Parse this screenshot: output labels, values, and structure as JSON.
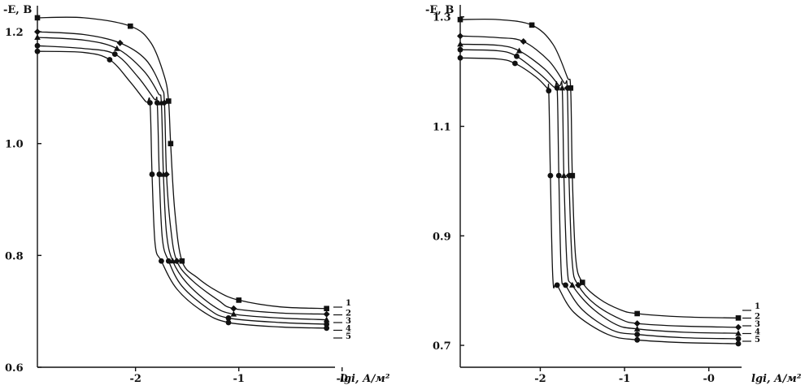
{
  "chart_data": [
    {
      "type": "line",
      "ylabel": "-E, B",
      "xlabel": "lgi, А/м²",
      "xlabel_parts": [
        "lgi, ",
        "А/м²"
      ],
      "xlim": [
        -2.95,
        -0.1
      ],
      "ylim": [
        0.6,
        1.235
      ],
      "x_ticks": [
        -2,
        -1,
        0
      ],
      "x_tick_labels": [
        "-2",
        "-1",
        "-0"
      ],
      "y_ticks": [
        0.6,
        0.8,
        1.0,
        1.2
      ],
      "y_tick_labels": [
        "0.6",
        "0.8",
        "1.0",
        "1.2"
      ],
      "grid": false,
      "legend_position": "right",
      "series": [
        {
          "name": "1",
          "marker": "square",
          "x": [
            -2.95,
            -2.5,
            -2.05,
            -1.85,
            -1.72,
            -1.68,
            -1.66,
            -1.62,
            -1.55,
            -1.4,
            -1.2,
            -1.0,
            -0.6,
            -0.15
          ],
          "y": [
            1.225,
            1.225,
            1.21,
            1.18,
            1.12,
            1.076,
            1.0,
            0.88,
            0.79,
            0.76,
            0.735,
            0.72,
            0.708,
            0.705
          ]
        },
        {
          "name": "2",
          "marker": "diamond",
          "x": [
            -2.95,
            -2.5,
            -2.15,
            -1.9,
            -1.75,
            -1.72,
            -1.7,
            -1.66,
            -1.6,
            -1.45,
            -1.2,
            -1.05,
            -0.6,
            -0.15
          ],
          "y": [
            1.2,
            1.195,
            1.18,
            1.15,
            1.1,
            1.073,
            0.945,
            0.85,
            0.79,
            0.755,
            0.72,
            0.705,
            0.697,
            0.695
          ]
        },
        {
          "name": "3",
          "marker": "triangle",
          "x": [
            -2.95,
            -2.5,
            -2.18,
            -1.92,
            -1.78,
            -1.75,
            -1.73,
            -1.7,
            -1.64,
            -1.5,
            -1.25,
            -1.05,
            -0.6,
            -0.15
          ],
          "y": [
            1.19,
            1.185,
            1.17,
            1.13,
            1.09,
            1.073,
            0.945,
            0.84,
            0.79,
            0.75,
            0.71,
            0.695,
            0.688,
            0.685
          ]
        },
        {
          "name": "4",
          "marker": "circle",
          "x": [
            -2.95,
            -2.5,
            -2.2,
            -1.98,
            -1.82,
            -1.79,
            -1.77,
            -1.74,
            -1.68,
            -1.55,
            -1.3,
            -1.1,
            -0.6,
            -0.15
          ],
          "y": [
            1.175,
            1.17,
            1.16,
            1.12,
            1.08,
            1.073,
            0.945,
            0.83,
            0.79,
            0.745,
            0.705,
            0.688,
            0.68,
            0.677
          ]
        },
        {
          "name": "5",
          "marker": "circle",
          "x": [
            -2.95,
            -2.5,
            -2.25,
            -2.05,
            -1.9,
            -1.86,
            -1.84,
            -1.81,
            -1.75,
            -1.6,
            -1.35,
            -1.1,
            -0.6,
            -0.15
          ],
          "y": [
            1.165,
            1.163,
            1.15,
            1.11,
            1.075,
            1.073,
            0.945,
            0.82,
            0.79,
            0.74,
            0.7,
            0.68,
            0.672,
            0.67
          ]
        }
      ]
    },
    {
      "type": "line",
      "ylabel": "-E, B",
      "xlabel": "lgi, А/м²",
      "xlabel_parts": [
        "lgi, ",
        "А/м²"
      ],
      "xlim": [
        -2.95,
        0.35
      ],
      "ylim": [
        0.66,
        1.31
      ],
      "x_ticks": [
        -2,
        -1,
        0
      ],
      "x_tick_labels": [
        "-2",
        "-1",
        "-0"
      ],
      "y_ticks": [
        0.7,
        0.9,
        1.1,
        1.3
      ],
      "y_tick_labels": [
        "0.7",
        "0.9",
        "1.1",
        "1.3"
      ],
      "grid": false,
      "legend_position": "right",
      "series": [
        {
          "name": "1",
          "marker": "square",
          "x": [
            -2.95,
            -2.5,
            -2.1,
            -1.85,
            -1.68,
            -1.64,
            -1.62,
            -1.58,
            -1.5,
            -1.3,
            -1.05,
            -0.85,
            -0.3,
            0.35
          ],
          "y": [
            1.295,
            1.295,
            1.285,
            1.25,
            1.19,
            1.17,
            1.01,
            0.86,
            0.815,
            0.785,
            0.765,
            0.758,
            0.752,
            0.75
          ]
        },
        {
          "name": "2",
          "marker": "diamond",
          "x": [
            -2.95,
            -2.5,
            -2.2,
            -1.9,
            -1.72,
            -1.68,
            -1.66,
            -1.62,
            -1.55,
            -1.35,
            -1.05,
            -0.85,
            -0.3,
            0.35
          ],
          "y": [
            1.265,
            1.262,
            1.255,
            1.22,
            1.18,
            1.17,
            1.01,
            0.85,
            0.81,
            0.775,
            0.748,
            0.74,
            0.735,
            0.733
          ]
        },
        {
          "name": "3",
          "marker": "triangle",
          "x": [
            -2.95,
            -2.5,
            -2.25,
            -1.95,
            -1.78,
            -1.74,
            -1.72,
            -1.68,
            -1.62,
            -1.4,
            -1.1,
            -0.85,
            -0.3,
            0.35
          ],
          "y": [
            1.25,
            1.248,
            1.238,
            1.205,
            1.175,
            1.17,
            1.01,
            0.84,
            0.81,
            0.77,
            0.738,
            0.73,
            0.724,
            0.722
          ]
        },
        {
          "name": "4",
          "marker": "circle",
          "x": [
            -2.95,
            -2.5,
            -2.28,
            -2.0,
            -1.84,
            -1.8,
            -1.78,
            -1.75,
            -1.7,
            -1.5,
            -1.15,
            -0.85,
            -0.3,
            0.35
          ],
          "y": [
            1.24,
            1.238,
            1.228,
            1.195,
            1.172,
            1.17,
            1.01,
            0.83,
            0.81,
            0.765,
            0.728,
            0.72,
            0.714,
            0.712
          ]
        },
        {
          "name": "5",
          "marker": "circle",
          "x": [
            -2.95,
            -2.5,
            -2.3,
            -2.05,
            -1.92,
            -1.9,
            -1.88,
            -1.85,
            -1.8,
            -1.6,
            -1.2,
            -0.85,
            -0.3,
            0.35
          ],
          "y": [
            1.225,
            1.223,
            1.215,
            1.19,
            1.17,
            1.165,
            1.01,
            0.82,
            0.81,
            0.76,
            0.72,
            0.71,
            0.705,
            0.703
          ]
        }
      ]
    }
  ]
}
